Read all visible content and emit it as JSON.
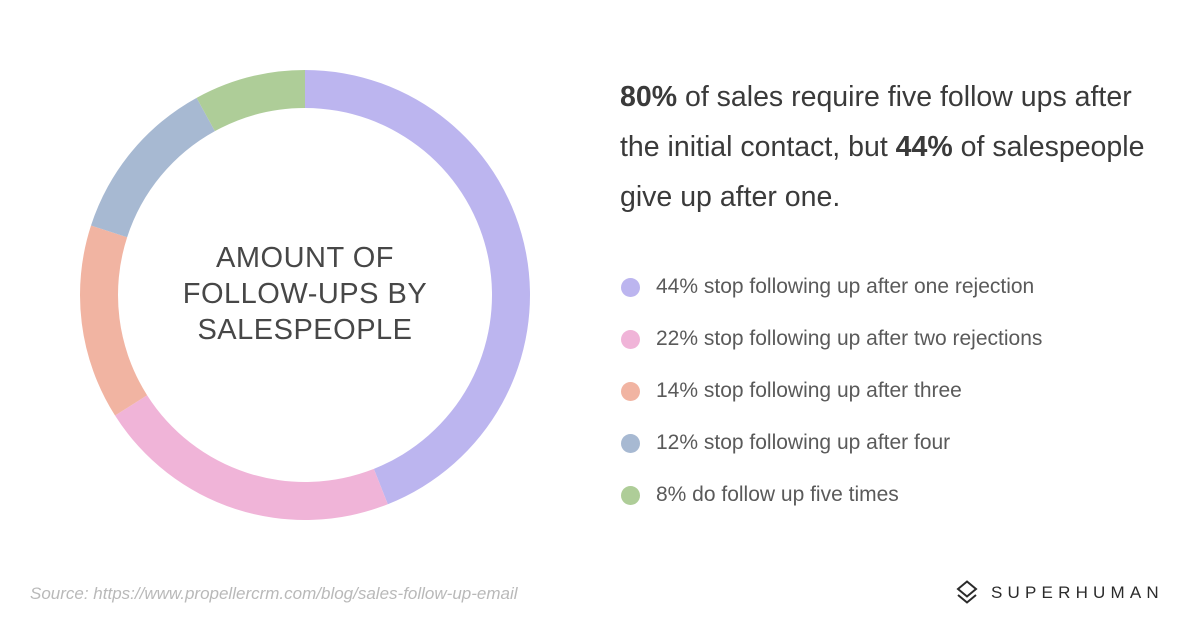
{
  "chart_data": {
    "type": "pie",
    "title": "AMOUNT OF FOLLOW-UPS BY SALESPEOPLE",
    "title_lines": [
      "AMOUNT OF",
      "FOLLOW-UPS BY",
      "SALESPEOPLE"
    ],
    "categories": [
      "44% stop following up after one rejection",
      "22% stop following up after two rejections",
      "14% stop following up after three",
      "12% stop following up after four",
      "8% do follow up five times"
    ],
    "values": [
      44,
      22,
      14,
      12,
      8
    ],
    "colors": [
      "#bcb5ef",
      "#f0b4d8",
      "#f1b4a2",
      "#a7b9d2",
      "#aecd98"
    ],
    "legend_position": "right"
  },
  "headline": {
    "pct_1": "80%",
    "text_1": " of sales require five follow ups after the initial contact, but ",
    "pct_2": "44%",
    "text_2": " of salespeople give up after one."
  },
  "source": "Source: https://www.propellercrm.com/blog/sales-follow-up-email",
  "brand": {
    "name": "SUPERHUMAN",
    "logo_icon": "superhuman-logo-icon"
  }
}
